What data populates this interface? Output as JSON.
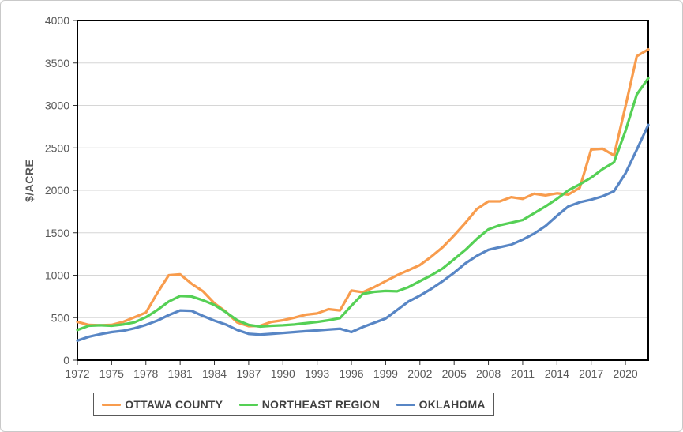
{
  "chart_data": {
    "type": "line",
    "title": "",
    "xlabel": "",
    "ylabel": "$/ACRE",
    "xlim": [
      1972,
      2022
    ],
    "ylim": [
      0,
      4000
    ],
    "grid": true,
    "legend_position": "bottom",
    "x": [
      1972,
      1973,
      1974,
      1975,
      1976,
      1977,
      1978,
      1979,
      1980,
      1981,
      1982,
      1983,
      1984,
      1985,
      1986,
      1987,
      1988,
      1989,
      1990,
      1991,
      1992,
      1993,
      1994,
      1995,
      1996,
      1997,
      1998,
      1999,
      2000,
      2001,
      2002,
      2003,
      2004,
      2005,
      2006,
      2007,
      2008,
      2009,
      2010,
      2011,
      2012,
      2013,
      2014,
      2015,
      2016,
      2017,
      2018,
      2019,
      2020,
      2021,
      2022
    ],
    "x_tick_labels": [
      1972,
      1975,
      1978,
      1981,
      1984,
      1987,
      1990,
      1993,
      1996,
      1999,
      2002,
      2005,
      2008,
      2011,
      2014,
      2017,
      2020
    ],
    "y_ticks": [
      0,
      500,
      1000,
      1500,
      2000,
      2500,
      3000,
      3500,
      4000
    ],
    "series": [
      {
        "name": "OTTAWA COUNTY",
        "color": "#F89C4D",
        "values": [
          450,
          415,
          410,
          415,
          450,
          505,
          560,
          790,
          1000,
          1010,
          900,
          810,
          670,
          570,
          445,
          400,
          405,
          450,
          470,
          500,
          535,
          550,
          600,
          585,
          820,
          800,
          860,
          930,
          1000,
          1060,
          1120,
          1220,
          1330,
          1470,
          1620,
          1780,
          1870,
          1870,
          1920,
          1900,
          1960,
          1940,
          1965,
          1950,
          2030,
          2480,
          2490,
          2410,
          2990,
          3580,
          3660
        ]
      },
      {
        "name": "NORTHEAST REGION",
        "color": "#55D055",
        "values": [
          355,
          405,
          410,
          405,
          420,
          445,
          505,
          590,
          690,
          755,
          750,
          705,
          650,
          565,
          470,
          415,
          395,
          405,
          410,
          420,
          435,
          450,
          470,
          495,
          640,
          780,
          805,
          815,
          810,
          860,
          930,
          1000,
          1080,
          1190,
          1300,
          1430,
          1540,
          1590,
          1620,
          1650,
          1730,
          1810,
          1900,
          2000,
          2070,
          2150,
          2250,
          2330,
          2700,
          3130,
          3320
        ]
      },
      {
        "name": "OKLAHOMA",
        "color": "#5886C5",
        "values": [
          230,
          275,
          305,
          330,
          345,
          375,
          415,
          465,
          530,
          585,
          580,
          520,
          465,
          420,
          355,
          310,
          300,
          310,
          320,
          330,
          340,
          350,
          360,
          370,
          330,
          390,
          440,
          490,
          590,
          690,
          760,
          840,
          930,
          1030,
          1140,
          1230,
          1300,
          1330,
          1360,
          1420,
          1490,
          1580,
          1700,
          1810,
          1860,
          1890,
          1930,
          1990,
          2200,
          2480,
          2770
        ]
      }
    ]
  },
  "colors": {
    "axis_text": "#595959",
    "legend_text": "#404040",
    "gridline": "#D6D6D6",
    "tick": "#333333",
    "plot_border": "#000000",
    "legend_border": "#595959",
    "chart_border": "#C9C9C9"
  }
}
